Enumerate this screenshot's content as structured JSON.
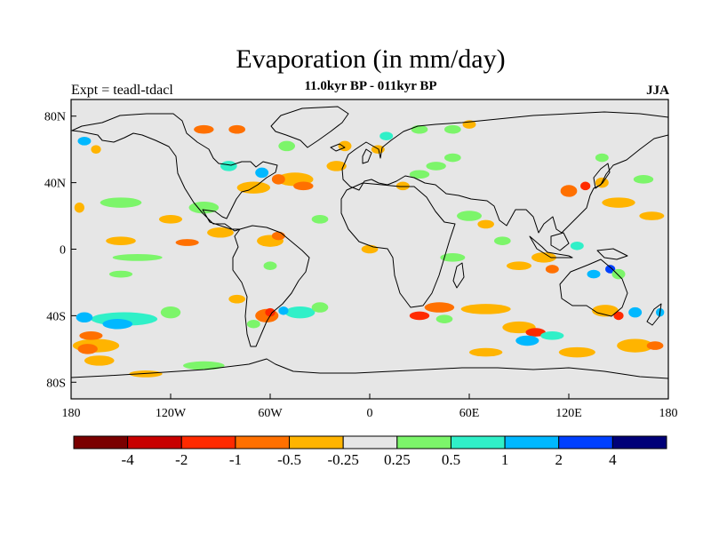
{
  "chart_data": {
    "type": "contour-map",
    "title": "Evaporation (in mm/day)",
    "subtitle": "11.0kyr BP - 011kyr BP",
    "left_label": "Expt = teadl-tdacl",
    "season": "JJA",
    "x_axis": {
      "range": [
        -180,
        180
      ],
      "ticks": [
        {
          "value": -180,
          "label": "180"
        },
        {
          "value": -120,
          "label": "120W"
        },
        {
          "value": -60,
          "label": "60W"
        },
        {
          "value": 0,
          "label": "0"
        },
        {
          "value": 60,
          "label": "60E"
        },
        {
          "value": 120,
          "label": "120E"
        },
        {
          "value": 180,
          "label": "180"
        }
      ]
    },
    "y_axis": {
      "range": [
        -90,
        90
      ],
      "ticks": [
        {
          "value": 80,
          "label": "80N"
        },
        {
          "value": 40,
          "label": "40N"
        },
        {
          "value": 0,
          "label": "0"
        },
        {
          "value": -40,
          "label": "40S"
        },
        {
          "value": -80,
          "label": "80S"
        }
      ]
    },
    "levels": [
      "-4",
      "-2",
      "-1",
      "-0.5",
      "-0.25",
      "0.25",
      "0.5",
      "1",
      "2",
      "4"
    ],
    "colors": [
      "#7a0000",
      "#c80000",
      "#ff2a00",
      "#ff7000",
      "#ffb400",
      "#e6e6e6",
      "#7cf56a",
      "#30f0c8",
      "#00b8ff",
      "#0040ff",
      "#000078"
    ],
    "blobs": [
      {
        "lon": -148,
        "lat": -42,
        "w": 40,
        "h": 6,
        "bin": 7
      },
      {
        "lon": -152,
        "lat": -45,
        "w": 18,
        "h": 4,
        "bin": 8
      },
      {
        "lon": -172,
        "lat": -41,
        "w": 10,
        "h": 4,
        "bin": 8
      },
      {
        "lon": -165,
        "lat": -58,
        "w": 28,
        "h": 6,
        "bin": 4
      },
      {
        "lon": -170,
        "lat": -60,
        "w": 12,
        "h": 4,
        "bin": 3
      },
      {
        "lon": -168,
        "lat": -52,
        "w": 14,
        "h": 3,
        "bin": 3
      },
      {
        "lon": -163,
        "lat": -67,
        "w": 18,
        "h": 4,
        "bin": 4
      },
      {
        "lon": -120,
        "lat": -38,
        "w": 12,
        "h": 5,
        "bin": 6
      },
      {
        "lon": -100,
        "lat": -70,
        "w": 25,
        "h": 3,
        "bin": 6
      },
      {
        "lon": -62,
        "lat": -40,
        "w": 14,
        "h": 6,
        "bin": 3
      },
      {
        "lon": -60,
        "lat": -38,
        "w": 6,
        "h": 3,
        "bin": 2
      },
      {
        "lon": -42,
        "lat": -38,
        "w": 18,
        "h": 5,
        "bin": 7
      },
      {
        "lon": -52,
        "lat": -37,
        "w": 6,
        "h": 3,
        "bin": 8
      },
      {
        "lon": -30,
        "lat": -35,
        "w": 10,
        "h": 4,
        "bin": 6
      },
      {
        "lon": -70,
        "lat": -45,
        "w": 8,
        "h": 3,
        "bin": 6
      },
      {
        "lon": -80,
        "lat": -30,
        "w": 10,
        "h": 3,
        "bin": 4
      },
      {
        "lon": 42,
        "lat": -35,
        "w": 18,
        "h": 4,
        "bin": 3
      },
      {
        "lon": 70,
        "lat": -36,
        "w": 30,
        "h": 4,
        "bin": 4
      },
      {
        "lon": 30,
        "lat": -40,
        "w": 12,
        "h": 3,
        "bin": 2
      },
      {
        "lon": 45,
        "lat": -42,
        "w": 10,
        "h": 3,
        "bin": 6
      },
      {
        "lon": 90,
        "lat": -47,
        "w": 20,
        "h": 5,
        "bin": 4
      },
      {
        "lon": 100,
        "lat": -50,
        "w": 12,
        "h": 3,
        "bin": 2
      },
      {
        "lon": 95,
        "lat": -55,
        "w": 14,
        "h": 4,
        "bin": 8
      },
      {
        "lon": 110,
        "lat": -52,
        "w": 14,
        "h": 3,
        "bin": 7
      },
      {
        "lon": 70,
        "lat": -62,
        "w": 20,
        "h": 3,
        "bin": 4
      },
      {
        "lon": 125,
        "lat": -62,
        "w": 22,
        "h": 4,
        "bin": 4
      },
      {
        "lon": 160,
        "lat": -58,
        "w": 22,
        "h": 6,
        "bin": 4
      },
      {
        "lon": 172,
        "lat": -58,
        "w": 10,
        "h": 3,
        "bin": 3
      },
      {
        "lon": 142,
        "lat": -37,
        "w": 16,
        "h": 5,
        "bin": 4
      },
      {
        "lon": 150,
        "lat": -40,
        "w": 6,
        "h": 3,
        "bin": 2
      },
      {
        "lon": 160,
        "lat": -38,
        "w": 8,
        "h": 4,
        "bin": 8
      },
      {
        "lon": 175,
        "lat": -38,
        "w": 5,
        "h": 3,
        "bin": 8
      },
      {
        "lon": -150,
        "lat": 28,
        "w": 25,
        "h": 4,
        "bin": 6
      },
      {
        "lon": -175,
        "lat": 25,
        "w": 6,
        "h": 4,
        "bin": 4
      },
      {
        "lon": -100,
        "lat": 25,
        "w": 18,
        "h": 5,
        "bin": 6
      },
      {
        "lon": -70,
        "lat": 37,
        "w": 20,
        "h": 5,
        "bin": 4
      },
      {
        "lon": -45,
        "lat": 42,
        "w": 22,
        "h": 6,
        "bin": 4
      },
      {
        "lon": -40,
        "lat": 38,
        "w": 12,
        "h": 3,
        "bin": 3
      },
      {
        "lon": -55,
        "lat": 42,
        "w": 8,
        "h": 4,
        "bin": 3
      },
      {
        "lon": -65,
        "lat": 46,
        "w": 8,
        "h": 4,
        "bin": 8
      },
      {
        "lon": -85,
        "lat": 50,
        "w": 10,
        "h": 4,
        "bin": 7
      },
      {
        "lon": -20,
        "lat": 50,
        "w": 12,
        "h": 4,
        "bin": 4
      },
      {
        "lon": -15,
        "lat": 62,
        "w": 8,
        "h": 4,
        "bin": 4
      },
      {
        "lon": -100,
        "lat": 72,
        "w": 12,
        "h": 3,
        "bin": 3
      },
      {
        "lon": -80,
        "lat": 72,
        "w": 10,
        "h": 3,
        "bin": 3
      },
      {
        "lon": -172,
        "lat": 65,
        "w": 8,
        "h": 3,
        "bin": 8
      },
      {
        "lon": -165,
        "lat": 60,
        "w": 6,
        "h": 3,
        "bin": 4
      },
      {
        "lon": -50,
        "lat": 62,
        "w": 10,
        "h": 4,
        "bin": 6
      },
      {
        "lon": -120,
        "lat": 18,
        "w": 14,
        "h": 3,
        "bin": 4
      },
      {
        "lon": -150,
        "lat": 5,
        "w": 18,
        "h": 3,
        "bin": 4
      },
      {
        "lon": -110,
        "lat": 4,
        "w": 14,
        "h": 2,
        "bin": 3
      },
      {
        "lon": -90,
        "lat": 10,
        "w": 16,
        "h": 4,
        "bin": 4
      },
      {
        "lon": -60,
        "lat": 5,
        "w": 16,
        "h": 5,
        "bin": 4
      },
      {
        "lon": -55,
        "lat": 8,
        "w": 8,
        "h": 3,
        "bin": 3
      },
      {
        "lon": -140,
        "lat": -5,
        "w": 30,
        "h": 2,
        "bin": 6
      },
      {
        "lon": -150,
        "lat": -15,
        "w": 14,
        "h": 2,
        "bin": 6
      },
      {
        "lon": -60,
        "lat": -10,
        "w": 8,
        "h": 3,
        "bin": 6
      },
      {
        "lon": -30,
        "lat": 18,
        "w": 10,
        "h": 3,
        "bin": 6
      },
      {
        "lon": 0,
        "lat": 0,
        "w": 10,
        "h": 3,
        "bin": 4
      },
      {
        "lon": 20,
        "lat": 38,
        "w": 8,
        "h": 3,
        "bin": 4
      },
      {
        "lon": 30,
        "lat": 45,
        "w": 12,
        "h": 3,
        "bin": 6
      },
      {
        "lon": 40,
        "lat": 50,
        "w": 12,
        "h": 3,
        "bin": 6
      },
      {
        "lon": 50,
        "lat": 55,
        "w": 10,
        "h": 3,
        "bin": 6
      },
      {
        "lon": 60,
        "lat": 20,
        "w": 15,
        "h": 4,
        "bin": 6
      },
      {
        "lon": 70,
        "lat": 15,
        "w": 10,
        "h": 3,
        "bin": 4
      },
      {
        "lon": 80,
        "lat": 5,
        "w": 10,
        "h": 3,
        "bin": 6
      },
      {
        "lon": 50,
        "lat": -5,
        "w": 15,
        "h": 3,
        "bin": 6
      },
      {
        "lon": 90,
        "lat": -10,
        "w": 15,
        "h": 3,
        "bin": 4
      },
      {
        "lon": 105,
        "lat": -5,
        "w": 15,
        "h": 4,
        "bin": 4
      },
      {
        "lon": 110,
        "lat": -12,
        "w": 8,
        "h": 3,
        "bin": 3
      },
      {
        "lon": 125,
        "lat": 2,
        "w": 8,
        "h": 3,
        "bin": 7
      },
      {
        "lon": 135,
        "lat": -15,
        "w": 8,
        "h": 3,
        "bin": 8
      },
      {
        "lon": 145,
        "lat": -12,
        "w": 6,
        "h": 3,
        "bin": 9
      },
      {
        "lon": 150,
        "lat": -15,
        "w": 8,
        "h": 4,
        "bin": 6
      },
      {
        "lon": 120,
        "lat": 35,
        "w": 10,
        "h": 5,
        "bin": 3
      },
      {
        "lon": 130,
        "lat": 38,
        "w": 6,
        "h": 3,
        "bin": 2
      },
      {
        "lon": 140,
        "lat": 40,
        "w": 8,
        "h": 4,
        "bin": 4
      },
      {
        "lon": 150,
        "lat": 28,
        "w": 20,
        "h": 4,
        "bin": 4
      },
      {
        "lon": 170,
        "lat": 20,
        "w": 15,
        "h": 3,
        "bin": 4
      },
      {
        "lon": 165,
        "lat": 42,
        "w": 12,
        "h": 3,
        "bin": 6
      },
      {
        "lon": 140,
        "lat": 55,
        "w": 8,
        "h": 3,
        "bin": 6
      },
      {
        "lon": 30,
        "lat": 72,
        "w": 10,
        "h": 3,
        "bin": 6
      },
      {
        "lon": 50,
        "lat": 72,
        "w": 10,
        "h": 3,
        "bin": 6
      },
      {
        "lon": 60,
        "lat": 75,
        "w": 8,
        "h": 3,
        "bin": 4
      },
      {
        "lon": 10,
        "lat": 68,
        "w": 8,
        "h": 3,
        "bin": 7
      },
      {
        "lon": 5,
        "lat": 60,
        "w": 8,
        "h": 3,
        "bin": 4
      },
      {
        "lon": -135,
        "lat": -75,
        "w": 20,
        "h": 2,
        "bin": 4
      }
    ]
  }
}
